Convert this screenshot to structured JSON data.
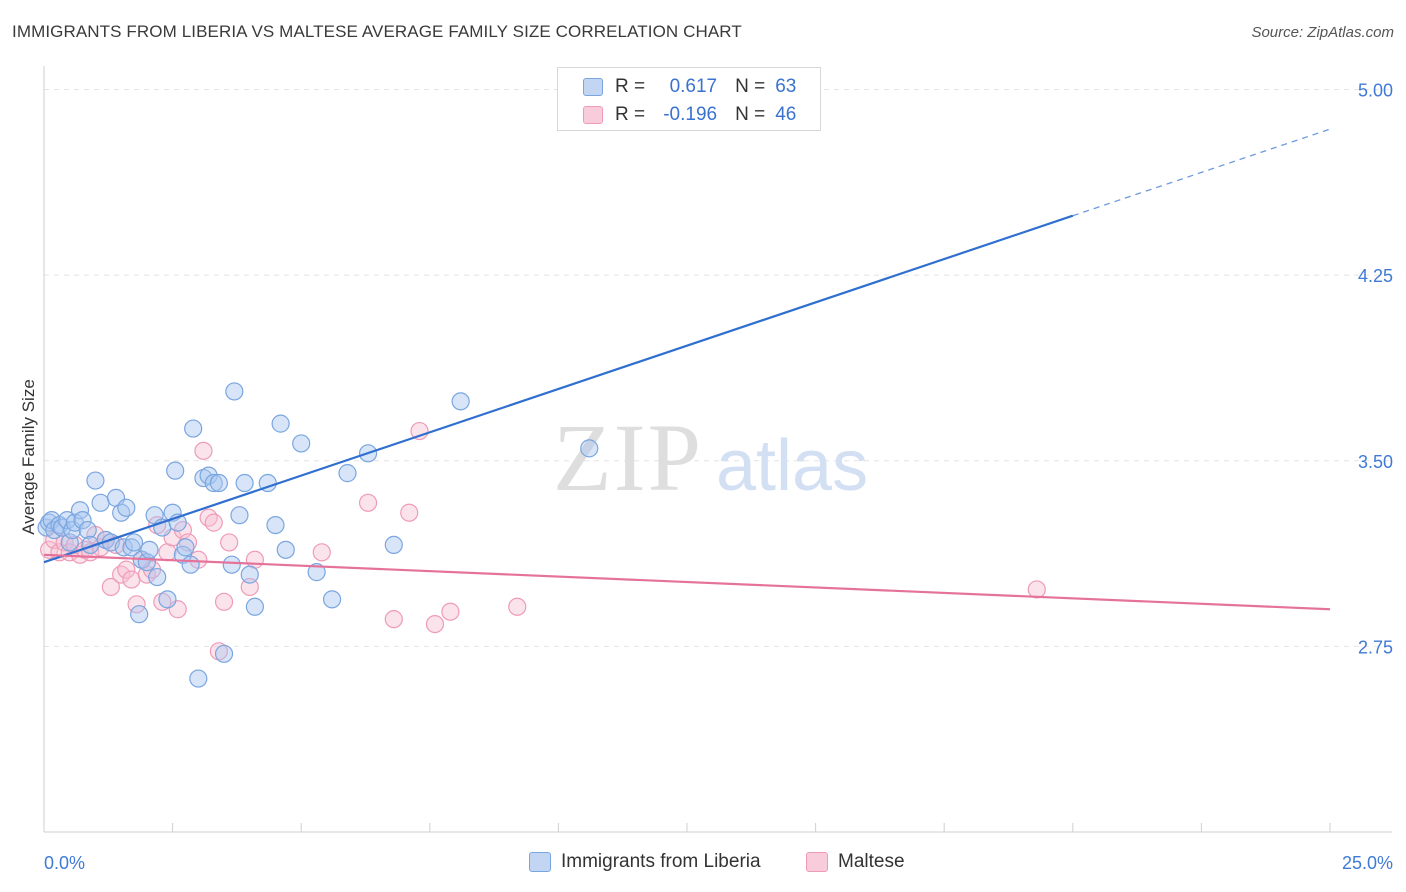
{
  "header": {
    "title": "IMMIGRANTS FROM LIBERIA VS MALTESE AVERAGE FAMILY SIZE CORRELATION CHART",
    "source": "Source: ZipAtlas.com"
  },
  "legend": {
    "rows": [
      {
        "r_label": "R =",
        "r_value": "0.617",
        "n_label": "N =",
        "n_value": "63"
      },
      {
        "r_label": "R =",
        "r_value": "-0.196",
        "n_label": "N =",
        "n_value": "46"
      }
    ]
  },
  "watermark": {
    "zip": "ZIP",
    "atlas": "atlas"
  },
  "colors": {
    "blue_fill": "#a9c6ef",
    "blue_stroke": "#7aa6e0",
    "blue_line": "#2f6fd0",
    "pink_fill": "#f7c0d2",
    "pink_stroke": "#ef9bb8",
    "pink_line": "#e5729b",
    "accent_text": "#3f7ad6"
  },
  "chart_data": {
    "type": "scatter",
    "title": "IMMIGRANTS FROM LIBERIA VS MALTESE AVERAGE FAMILY SIZE CORRELATION CHART",
    "xlabel": "",
    "ylabel": "Average Family Size",
    "xlim": [
      0,
      25
    ],
    "ylim": [
      2.0,
      5.2
    ],
    "x_ticks": [
      0,
      25
    ],
    "x_tick_labels": [
      "0.0%",
      "25.0%"
    ],
    "y_ticks": [
      2.75,
      3.5,
      4.25,
      5.0
    ],
    "y_tick_labels": [
      "2.75",
      "3.50",
      "4.25",
      "5.00"
    ],
    "grid": true,
    "legend_position": "top-center",
    "series": [
      {
        "name": "Immigrants from Liberia",
        "color": "#a9c6ef",
        "trend": {
          "x0": 0,
          "y0": 3.09,
          "x1": 20,
          "y1": 4.49,
          "dashed_to_x": 25,
          "dashed_to_y": 4.84
        },
        "points": [
          [
            0.05,
            3.23
          ],
          [
            0.1,
            3.25
          ],
          [
            0.15,
            3.26
          ],
          [
            0.2,
            3.22
          ],
          [
            0.3,
            3.24
          ],
          [
            0.35,
            3.23
          ],
          [
            0.45,
            3.26
          ],
          [
            0.5,
            3.17
          ],
          [
            0.55,
            3.22
          ],
          [
            0.6,
            3.25
          ],
          [
            0.7,
            3.3
          ],
          [
            0.75,
            3.26
          ],
          [
            0.85,
            3.22
          ],
          [
            0.9,
            3.16
          ],
          [
            1.0,
            3.42
          ],
          [
            1.1,
            3.33
          ],
          [
            1.2,
            3.18
          ],
          [
            1.3,
            3.17
          ],
          [
            1.4,
            3.35
          ],
          [
            1.5,
            3.29
          ],
          [
            1.55,
            3.15
          ],
          [
            1.6,
            3.31
          ],
          [
            1.7,
            3.15
          ],
          [
            1.75,
            3.17
          ],
          [
            1.85,
            2.88
          ],
          [
            1.9,
            3.1
          ],
          [
            2.0,
            3.09
          ],
          [
            2.05,
            3.14
          ],
          [
            2.15,
            3.28
          ],
          [
            2.2,
            3.03
          ],
          [
            2.3,
            3.23
          ],
          [
            2.4,
            2.94
          ],
          [
            2.5,
            3.29
          ],
          [
            2.55,
            3.46
          ],
          [
            2.6,
            3.25
          ],
          [
            2.7,
            3.12
          ],
          [
            2.75,
            3.15
          ],
          [
            2.85,
            3.08
          ],
          [
            2.9,
            3.63
          ],
          [
            3.0,
            2.62
          ],
          [
            3.1,
            3.43
          ],
          [
            3.2,
            3.44
          ],
          [
            3.3,
            3.41
          ],
          [
            3.4,
            3.41
          ],
          [
            3.5,
            2.72
          ],
          [
            3.65,
            3.08
          ],
          [
            3.7,
            3.78
          ],
          [
            3.8,
            3.28
          ],
          [
            3.9,
            3.41
          ],
          [
            4.0,
            3.04
          ],
          [
            4.1,
            2.91
          ],
          [
            4.35,
            3.41
          ],
          [
            4.5,
            3.24
          ],
          [
            4.6,
            3.65
          ],
          [
            4.7,
            3.14
          ],
          [
            5.0,
            3.57
          ],
          [
            5.3,
            3.05
          ],
          [
            5.6,
            2.94
          ],
          [
            5.9,
            3.45
          ],
          [
            6.3,
            3.53
          ],
          [
            6.8,
            3.16
          ],
          [
            8.1,
            3.74
          ],
          [
            10.6,
            3.55
          ]
        ]
      },
      {
        "name": "Maltese",
        "color": "#f7c0d2",
        "trend": {
          "x0": 0,
          "y0": 3.12,
          "x1": 25,
          "y1": 2.9
        },
        "points": [
          [
            0.1,
            3.14
          ],
          [
            0.2,
            3.18
          ],
          [
            0.3,
            3.13
          ],
          [
            0.4,
            3.17
          ],
          [
            0.5,
            3.13
          ],
          [
            0.6,
            3.16
          ],
          [
            0.7,
            3.12
          ],
          [
            0.8,
            3.14
          ],
          [
            0.9,
            3.13
          ],
          [
            1.0,
            3.2
          ],
          [
            1.1,
            3.15
          ],
          [
            1.2,
            3.18
          ],
          [
            1.3,
            2.99
          ],
          [
            1.4,
            3.16
          ],
          [
            1.5,
            3.04
          ],
          [
            1.6,
            3.06
          ],
          [
            1.7,
            3.02
          ],
          [
            1.8,
            2.92
          ],
          [
            1.9,
            3.1
          ],
          [
            2.0,
            3.04
          ],
          [
            2.1,
            3.06
          ],
          [
            2.2,
            3.24
          ],
          [
            2.3,
            2.93
          ],
          [
            2.4,
            3.13
          ],
          [
            2.5,
            3.19
          ],
          [
            2.6,
            2.9
          ],
          [
            2.7,
            3.22
          ],
          [
            2.8,
            3.17
          ],
          [
            3.0,
            3.1
          ],
          [
            3.1,
            3.54
          ],
          [
            3.2,
            3.27
          ],
          [
            3.3,
            3.25
          ],
          [
            3.4,
            2.73
          ],
          [
            3.5,
            2.93
          ],
          [
            3.6,
            3.17
          ],
          [
            4.0,
            2.99
          ],
          [
            4.1,
            3.1
          ],
          [
            5.4,
            3.13
          ],
          [
            6.3,
            3.33
          ],
          [
            6.8,
            2.86
          ],
          [
            7.1,
            3.29
          ],
          [
            7.3,
            3.62
          ],
          [
            7.6,
            2.84
          ],
          [
            7.9,
            2.89
          ],
          [
            9.2,
            2.91
          ],
          [
            19.3,
            2.98
          ]
        ]
      }
    ]
  },
  "bottom_legend": {
    "items": [
      "Immigrants from Liberia",
      "Maltese"
    ]
  }
}
